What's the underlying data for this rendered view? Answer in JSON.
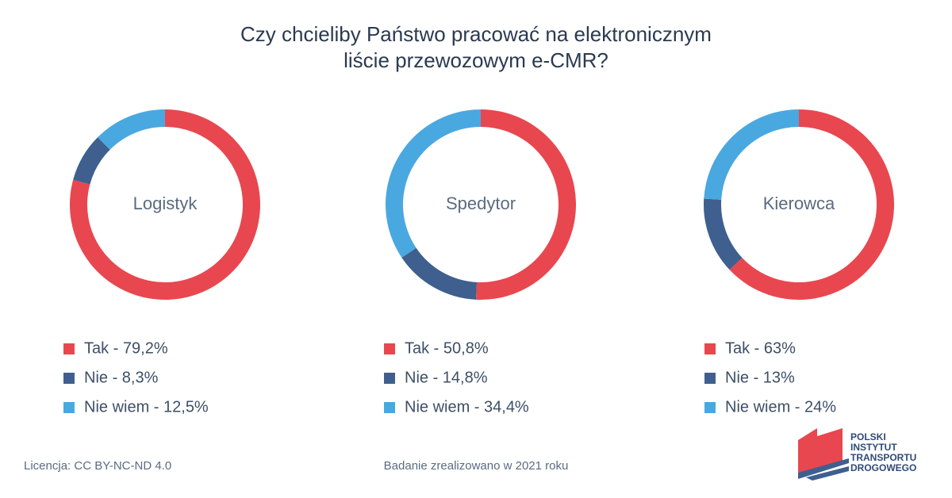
{
  "title": [
    "Czy chcieliby Państwo pracować na elektronicznym",
    "liście przewozowym e-CMR?"
  ],
  "chart_data": [
    {
      "type": "donut",
      "title": "Logistyk",
      "categories": [
        "Tak - 79,2%",
        "Nie - 8,3%",
        "Nie wiem - 12,5%"
      ],
      "values": [
        79.2,
        8.3,
        12.5
      ],
      "colors": [
        "#e8474f",
        "#3f5f8f",
        "#4aa8e0"
      ]
    },
    {
      "type": "donut",
      "title": "Spedytor",
      "categories": [
        "Tak - 50,8%",
        "Nie - 14,8%",
        "Nie wiem - 34,4%"
      ],
      "values": [
        50.8,
        14.8,
        34.4
      ],
      "colors": [
        "#e8474f",
        "#3f5f8f",
        "#4aa8e0"
      ]
    },
    {
      "type": "donut",
      "title": "Kierowca",
      "categories": [
        "Tak - 63%",
        "Nie - 13%",
        "Nie wiem - 24%"
      ],
      "values": [
        63,
        13,
        24
      ],
      "colors": [
        "#e8474f",
        "#3f5f8f",
        "#4aa8e0"
      ]
    }
  ],
  "footer": {
    "license": "Licencja: CC BY-NC-ND 4.0",
    "note": "Badanie zrealizowano w 2021 roku"
  },
  "logo": {
    "lines": [
      "POLSKI",
      "INSTYTUT",
      "TRANSPORTU",
      "DROGOWEGO"
    ]
  }
}
